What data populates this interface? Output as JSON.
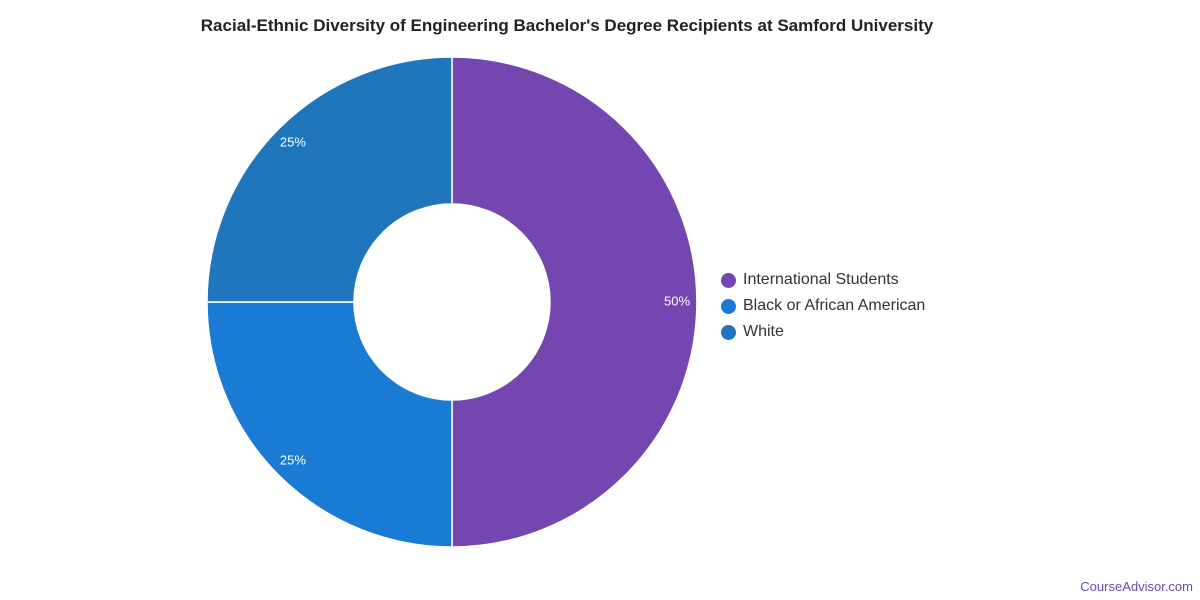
{
  "chart_data": {
    "type": "pie",
    "title": "Racial-Ethnic Diversity of Engineering Bachelor's Degree Recipients at Samford University",
    "series": [
      {
        "name": "International Students",
        "value": 50,
        "label": "50%",
        "color": "#7446b0"
      },
      {
        "name": "Black or African American",
        "value": 25,
        "label": "25%",
        "color": "#1a7bd5"
      },
      {
        "name": "White",
        "value": 25,
        "label": "25%",
        "color": "#1f76bd"
      }
    ],
    "legend": "right"
  },
  "watermark": "CourseAdvisor.com"
}
